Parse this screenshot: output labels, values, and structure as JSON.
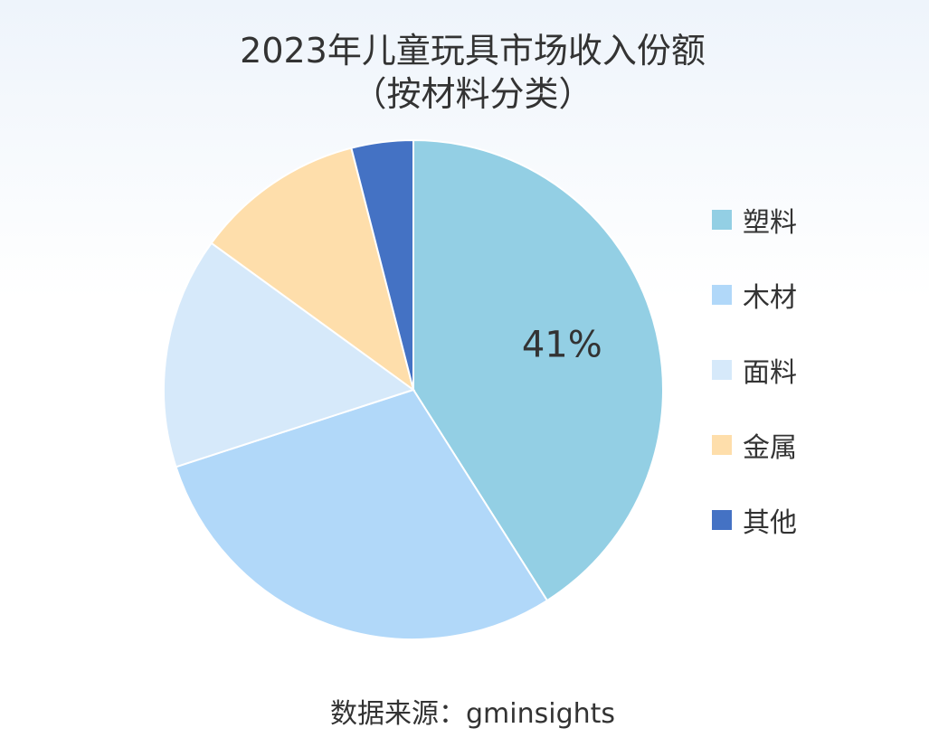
{
  "chart_data": {
    "type": "pie",
    "title_line1": "2023年儿童玩具市场收入份额",
    "title_line2": "（按材料分类）",
    "categories": [
      "塑料",
      "木材",
      "面料",
      "金属",
      "其他"
    ],
    "values": [
      41,
      29,
      15,
      11,
      4
    ],
    "colors": [
      "#93cfe4",
      "#b1d8f9",
      "#d6e9fa",
      "#fedeab",
      "#4472c4"
    ],
    "data_labels": [
      {
        "category": "塑料",
        "text": "41%"
      }
    ],
    "legend_position": "right",
    "start_angle": "12 o'clock",
    "direction": "clockwise"
  },
  "source": "数据来源：gminsights"
}
